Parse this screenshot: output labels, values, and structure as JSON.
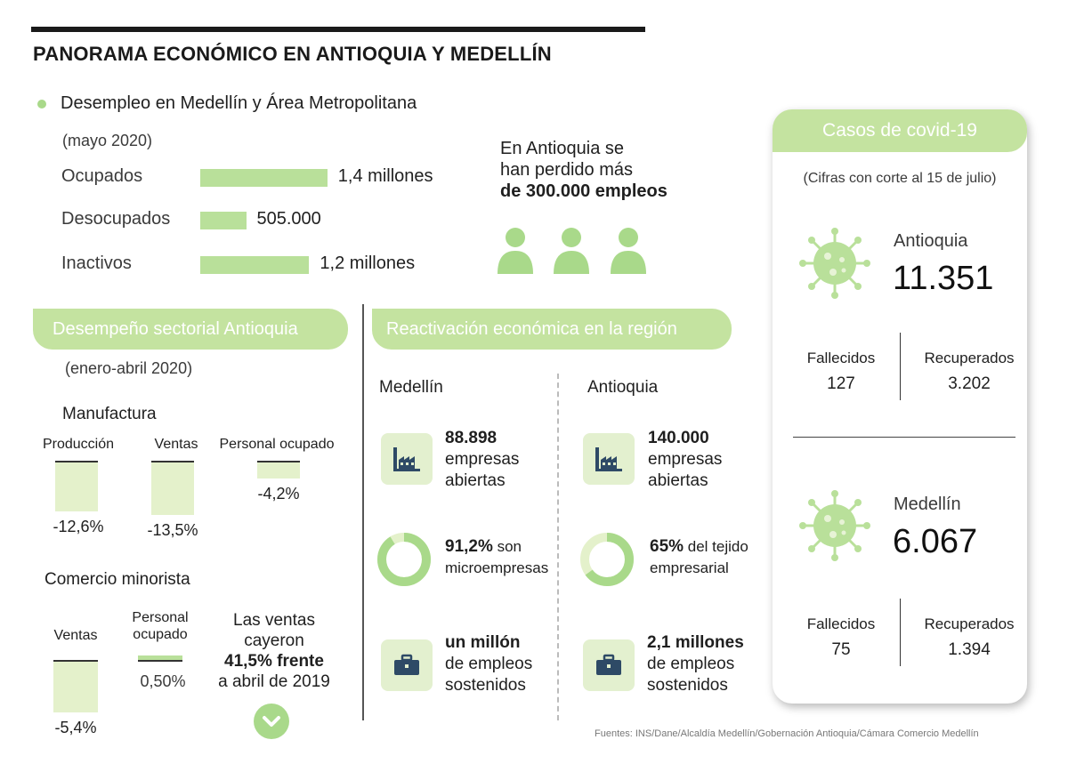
{
  "title": "PANORAMA ECONÓMICO EN ANTIOQUIA Y MEDELLÍN",
  "colors": {
    "accent_green": "#a9d98a",
    "pill_green": "#c4e3a0",
    "bar_pale": "#e4f1cb",
    "text_dark": "#1f1f1f"
  },
  "desempleo": {
    "heading": "Desempleo en Medellín y Área Metropolitana",
    "period": "(mayo 2020)",
    "rows": [
      {
        "label": "Ocupados",
        "value": "1,4 millones",
        "amount_millions": 1.4
      },
      {
        "label": "Desocupados",
        "value": "505.000",
        "amount_millions": 0.505
      },
      {
        "label": "Inactivos",
        "value": "1,2 millones",
        "amount_millions": 1.2
      }
    ],
    "lost_jobs": {
      "line1": "En Antioquia se",
      "line2": "han perdido más",
      "line3": "de 300.000 empleos"
    },
    "people_icons": [
      "person-icon",
      "person-icon",
      "person-icon"
    ]
  },
  "sectorial": {
    "heading": "Desempeño sectorial Antioquia",
    "period": "(enero-abril 2020)",
    "manufactura": {
      "title": "Manufactura",
      "items": [
        {
          "label": "Producción",
          "value": "-12,6%",
          "pct": -12.6
        },
        {
          "label": "Ventas",
          "value": "-13,5%",
          "pct": -13.5
        },
        {
          "label": "Personal ocupado",
          "value": "-4,2%",
          "pct": -4.2
        }
      ]
    },
    "comercio": {
      "title": "Comercio minorista",
      "items": [
        {
          "label": "Ventas",
          "value": "-5,4%",
          "pct": -5.4
        },
        {
          "label_line1": "Personal",
          "label_line2": "ocupado",
          "value": "0,50%",
          "pct": 0.5
        }
      ],
      "note": {
        "line1": "Las ventas",
        "line2": "cayeron",
        "line3": "41,5% frente",
        "line4": "a abril de 2019"
      }
    }
  },
  "reactivacion": {
    "heading": "Reactivación económica en la región",
    "medellin": {
      "title": "Medellín",
      "empresas": {
        "line1": "88.898",
        "line2": "empresas",
        "line3": "abiertas"
      },
      "micro": {
        "bold": "91,2%",
        "rest": " son",
        "line2": "microempresas",
        "pct": 91.2
      },
      "empleos": {
        "line1": "un millón",
        "line2": "de empleos",
        "line3": "sostenidos"
      }
    },
    "antioquia": {
      "title": "Antioquia",
      "empresas": {
        "line1": "140.000",
        "line2": "empresas",
        "line3": "abiertas"
      },
      "tejido": {
        "bold": "65%",
        "rest": " del tejido",
        "line2": "empresarial",
        "pct": 65
      },
      "empleos": {
        "line1": "2,1 millones",
        "line2": "de empleos",
        "line3": "sostenidos"
      }
    }
  },
  "covid": {
    "heading": "Casos de covid-19",
    "cutoff": "(Cifras con corte al 15 de julio)",
    "antioquia": {
      "name": "Antioquia",
      "cases": "11.351",
      "fallecidos_label": "Fallecidos",
      "fallecidos": "127",
      "recuperados_label": "Recuperados",
      "recuperados": "3.202"
    },
    "medellin": {
      "name": "Medellín",
      "cases": "6.067",
      "fallecidos_label": "Fallecidos",
      "fallecidos": "75",
      "recuperados_label": "Recuperados",
      "recuperados": "1.394"
    }
  },
  "source": "Fuentes: INS/Dane/Alcaldía Medellín/Gobernación Antioquia/Cámara Comercio Medellín",
  "chart_data": [
    {
      "type": "bar",
      "title": "Desempleo en Medellín y Área Metropolitana (mayo 2020)",
      "categories": [
        "Ocupados",
        "Desocupados",
        "Inactivos"
      ],
      "values": [
        1.4,
        0.505,
        1.2
      ],
      "unit": "millones"
    },
    {
      "type": "bar",
      "title": "Manufactura (enero-abril 2020)",
      "categories": [
        "Producción",
        "Ventas",
        "Personal ocupado"
      ],
      "values": [
        -12.6,
        -13.5,
        -4.2
      ],
      "unit": "%"
    },
    {
      "type": "bar",
      "title": "Comercio minorista (enero-abril 2020)",
      "categories": [
        "Ventas",
        "Personal ocupado"
      ],
      "values": [
        -5.4,
        0.5
      ],
      "unit": "%"
    },
    {
      "type": "pie",
      "title": "Medellín microempresas",
      "values": [
        91.2,
        8.8
      ]
    },
    {
      "type": "pie",
      "title": "Antioquia tejido empresarial",
      "values": [
        65,
        35
      ]
    }
  ]
}
